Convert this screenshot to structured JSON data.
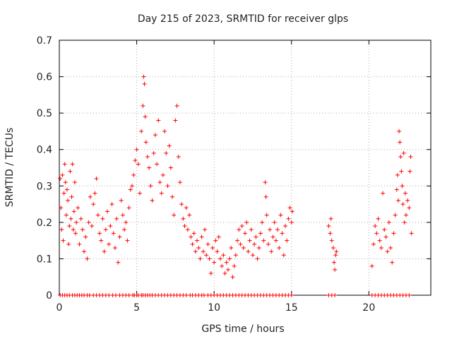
{
  "chart_data": {
    "type": "scatter",
    "title": "Day 215 of 2023, SRMTID for receiver glps",
    "xlabel": "GPS time / hours",
    "ylabel": "SRMTID / TECUs",
    "xlim": [
      0,
      24
    ],
    "ylim": [
      0,
      0.7
    ],
    "x_ticks": [
      0,
      5,
      10,
      15,
      20
    ],
    "y_ticks": [
      0,
      0.1,
      0.2,
      0.3,
      0.4,
      0.5,
      0.6,
      0.7
    ],
    "grid": true,
    "marker": "plus",
    "color": "#ff0000",
    "series": [
      {
        "name": "SRMTID",
        "points": [
          [
            0.05,
            0.32
          ],
          [
            0.1,
            0.24
          ],
          [
            0.15,
            0.18
          ],
          [
            0.2,
            0.33
          ],
          [
            0.25,
            0.15
          ],
          [
            0.3,
            0.28
          ],
          [
            0.35,
            0.36
          ],
          [
            0.4,
            0.31
          ],
          [
            0.45,
            0.22
          ],
          [
            0.5,
            0.29
          ],
          [
            0.55,
            0.26
          ],
          [
            0.6,
            0.14
          ],
          [
            0.65,
            0.19
          ],
          [
            0.7,
            0.34
          ],
          [
            0.75,
            0.21
          ],
          [
            0.8,
            0.27
          ],
          [
            0.85,
            0.36
          ],
          [
            0.9,
            0.18
          ],
          [
            0.95,
            0.23
          ],
          [
            1.0,
            0.31
          ],
          [
            1.05,
            0.17
          ],
          [
            1.1,
            0.2
          ],
          [
            1.2,
            0.24
          ],
          [
            1.3,
            0.14
          ],
          [
            1.4,
            0.21
          ],
          [
            1.5,
            0.18
          ],
          [
            1.6,
            0.12
          ],
          [
            1.7,
            0.16
          ],
          [
            1.8,
            0.1
          ],
          [
            1.9,
            0.2
          ],
          [
            2.0,
            0.27
          ],
          [
            2.1,
            0.19
          ],
          [
            2.2,
            0.25
          ],
          [
            2.3,
            0.28
          ],
          [
            2.4,
            0.32
          ],
          [
            2.5,
            0.22
          ],
          [
            2.6,
            0.17
          ],
          [
            2.7,
            0.15
          ],
          [
            2.8,
            0.21
          ],
          [
            2.9,
            0.12
          ],
          [
            3.0,
            0.18
          ],
          [
            3.1,
            0.23
          ],
          [
            3.2,
            0.14
          ],
          [
            3.3,
            0.19
          ],
          [
            3.4,
            0.25
          ],
          [
            3.5,
            0.17
          ],
          [
            3.6,
            0.13
          ],
          [
            3.7,
            0.21
          ],
          [
            3.8,
            0.09
          ],
          [
            3.9,
            0.16
          ],
          [
            4.0,
            0.26
          ],
          [
            4.1,
            0.22
          ],
          [
            4.2,
            0.18
          ],
          [
            4.3,
            0.2
          ],
          [
            4.4,
            0.15
          ],
          [
            4.5,
            0.24
          ],
          [
            4.6,
            0.29
          ],
          [
            4.7,
            0.3
          ],
          [
            4.8,
            0.33
          ],
          [
            4.9,
            0.37
          ],
          [
            5.0,
            0.4
          ],
          [
            5.1,
            0.36
          ],
          [
            5.2,
            0.28
          ],
          [
            5.3,
            0.45
          ],
          [
            5.4,
            0.52
          ],
          [
            5.45,
            0.6
          ],
          [
            5.5,
            0.58
          ],
          [
            5.55,
            0.49
          ],
          [
            5.6,
            0.42
          ],
          [
            5.7,
            0.38
          ],
          [
            5.8,
            0.35
          ],
          [
            5.9,
            0.3
          ],
          [
            6.0,
            0.26
          ],
          [
            6.1,
            0.39
          ],
          [
            6.2,
            0.44
          ],
          [
            6.3,
            0.36
          ],
          [
            6.4,
            0.48
          ],
          [
            6.5,
            0.31
          ],
          [
            6.6,
            0.28
          ],
          [
            6.7,
            0.33
          ],
          [
            6.8,
            0.45
          ],
          [
            6.9,
            0.39
          ],
          [
            7.0,
            0.3
          ],
          [
            7.1,
            0.41
          ],
          [
            7.2,
            0.35
          ],
          [
            7.3,
            0.27
          ],
          [
            7.4,
            0.22
          ],
          [
            7.5,
            0.48
          ],
          [
            7.6,
            0.52
          ],
          [
            7.7,
            0.38
          ],
          [
            7.8,
            0.31
          ],
          [
            7.9,
            0.25
          ],
          [
            8.0,
            0.21
          ],
          [
            8.1,
            0.19
          ],
          [
            8.2,
            0.24
          ],
          [
            8.3,
            0.18
          ],
          [
            8.4,
            0.22
          ],
          [
            8.5,
            0.16
          ],
          [
            8.6,
            0.14
          ],
          [
            8.7,
            0.17
          ],
          [
            8.8,
            0.12
          ],
          [
            8.9,
            0.15
          ],
          [
            9.0,
            0.13
          ],
          [
            9.1,
            0.1
          ],
          [
            9.2,
            0.16
          ],
          [
            9.3,
            0.12
          ],
          [
            9.4,
            0.18
          ],
          [
            9.5,
            0.11
          ],
          [
            9.6,
            0.14
          ],
          [
            9.7,
            0.1
          ],
          [
            9.8,
            0.06
          ],
          [
            9.9,
            0.13
          ],
          [
            10.0,
            0.09
          ],
          [
            10.1,
            0.15
          ],
          [
            10.2,
            0.12
          ],
          [
            10.3,
            0.16
          ],
          [
            10.4,
            0.1
          ],
          [
            10.5,
            0.08
          ],
          [
            10.6,
            0.11
          ],
          [
            10.7,
            0.06
          ],
          [
            10.8,
            0.09
          ],
          [
            10.9,
            0.07
          ],
          [
            11.0,
            0.1
          ],
          [
            11.1,
            0.13
          ],
          [
            11.2,
            0.05
          ],
          [
            11.3,
            0.08
          ],
          [
            11.4,
            0.11
          ],
          [
            11.5,
            0.15
          ],
          [
            11.6,
            0.18
          ],
          [
            11.7,
            0.14
          ],
          [
            11.8,
            0.19
          ],
          [
            11.9,
            0.13
          ],
          [
            12.0,
            0.17
          ],
          [
            12.1,
            0.2
          ],
          [
            12.2,
            0.12
          ],
          [
            12.3,
            0.15
          ],
          [
            12.4,
            0.18
          ],
          [
            12.5,
            0.11
          ],
          [
            12.6,
            0.14
          ],
          [
            12.7,
            0.16
          ],
          [
            12.8,
            0.1
          ],
          [
            12.9,
            0.13
          ],
          [
            13.0,
            0.17
          ],
          [
            13.1,
            0.2
          ],
          [
            13.2,
            0.15
          ],
          [
            13.3,
            0.31
          ],
          [
            13.35,
            0.27
          ],
          [
            13.4,
            0.22
          ],
          [
            13.5,
            0.14
          ],
          [
            13.6,
            0.18
          ],
          [
            13.7,
            0.12
          ],
          [
            13.8,
            0.16
          ],
          [
            13.9,
            0.2
          ],
          [
            14.0,
            0.15
          ],
          [
            14.1,
            0.18
          ],
          [
            14.2,
            0.13
          ],
          [
            14.3,
            0.22
          ],
          [
            14.4,
            0.17
          ],
          [
            14.5,
            0.11
          ],
          [
            14.6,
            0.19
          ],
          [
            14.7,
            0.15
          ],
          [
            14.8,
            0.21
          ],
          [
            14.9,
            0.24
          ],
          [
            15.0,
            0.2
          ],
          [
            15.05,
            0.23
          ],
          [
            17.4,
            0.19
          ],
          [
            17.5,
            0.17
          ],
          [
            17.55,
            0.21
          ],
          [
            17.6,
            0.15
          ],
          [
            17.7,
            0.13
          ],
          [
            17.75,
            0.09
          ],
          [
            17.8,
            0.07
          ],
          [
            17.85,
            0.11
          ],
          [
            17.9,
            0.12
          ],
          [
            20.2,
            0.08
          ],
          [
            20.3,
            0.14
          ],
          [
            20.4,
            0.19
          ],
          [
            20.5,
            0.17
          ],
          [
            20.6,
            0.21
          ],
          [
            20.7,
            0.15
          ],
          [
            20.8,
            0.13
          ],
          [
            20.9,
            0.28
          ],
          [
            21.0,
            0.18
          ],
          [
            21.1,
            0.16
          ],
          [
            21.2,
            0.12
          ],
          [
            21.3,
            0.2
          ],
          [
            21.4,
            0.13
          ],
          [
            21.5,
            0.09
          ],
          [
            21.6,
            0.17
          ],
          [
            21.7,
            0.22
          ],
          [
            21.8,
            0.29
          ],
          [
            21.85,
            0.33
          ],
          [
            21.9,
            0.26
          ],
          [
            21.95,
            0.45
          ],
          [
            22.0,
            0.42
          ],
          [
            22.05,
            0.38
          ],
          [
            22.1,
            0.34
          ],
          [
            22.15,
            0.3
          ],
          [
            22.2,
            0.25
          ],
          [
            22.25,
            0.39
          ],
          [
            22.3,
            0.2
          ],
          [
            22.35,
            0.28
          ],
          [
            22.4,
            0.22
          ],
          [
            22.5,
            0.26
          ],
          [
            22.6,
            0.24
          ],
          [
            22.65,
            0.34
          ],
          [
            22.7,
            0.38
          ],
          [
            22.75,
            0.17
          ]
        ]
      },
      {
        "name": "zero-baseline",
        "x": [
          0.05,
          0.2,
          0.35,
          0.5,
          0.65,
          0.85,
          1.0,
          1.15,
          1.3,
          1.45,
          1.6,
          1.8,
          1.95,
          2.2,
          2.4,
          2.6,
          2.8,
          3.0,
          3.2,
          3.45,
          3.65,
          3.9,
          4.1,
          4.3,
          4.5,
          4.75,
          4.85,
          5.0,
          5.1,
          5.3,
          5.4,
          5.55,
          5.7,
          5.85,
          6.0,
          6.2,
          6.4,
          6.6,
          6.8,
          7.0,
          7.2,
          7.4,
          7.6,
          7.8,
          8.0,
          8.2,
          8.45,
          8.6,
          8.8,
          9.0,
          9.2,
          9.35,
          9.6,
          9.8,
          10.0,
          10.2,
          10.4,
          10.6,
          10.8,
          11.0,
          11.2,
          11.4,
          11.6,
          11.8,
          12.0,
          12.2,
          12.4,
          12.6,
          12.8,
          13.0,
          13.2,
          13.4,
          13.6,
          13.8,
          14.0,
          14.2,
          14.4,
          14.6,
          14.8,
          15.0,
          17.4,
          17.6,
          17.8,
          20.2,
          20.4,
          20.6,
          20.8,
          21.0,
          21.2,
          21.4,
          21.6,
          21.8,
          22.0,
          22.2,
          22.4,
          22.6
        ]
      }
    ]
  }
}
